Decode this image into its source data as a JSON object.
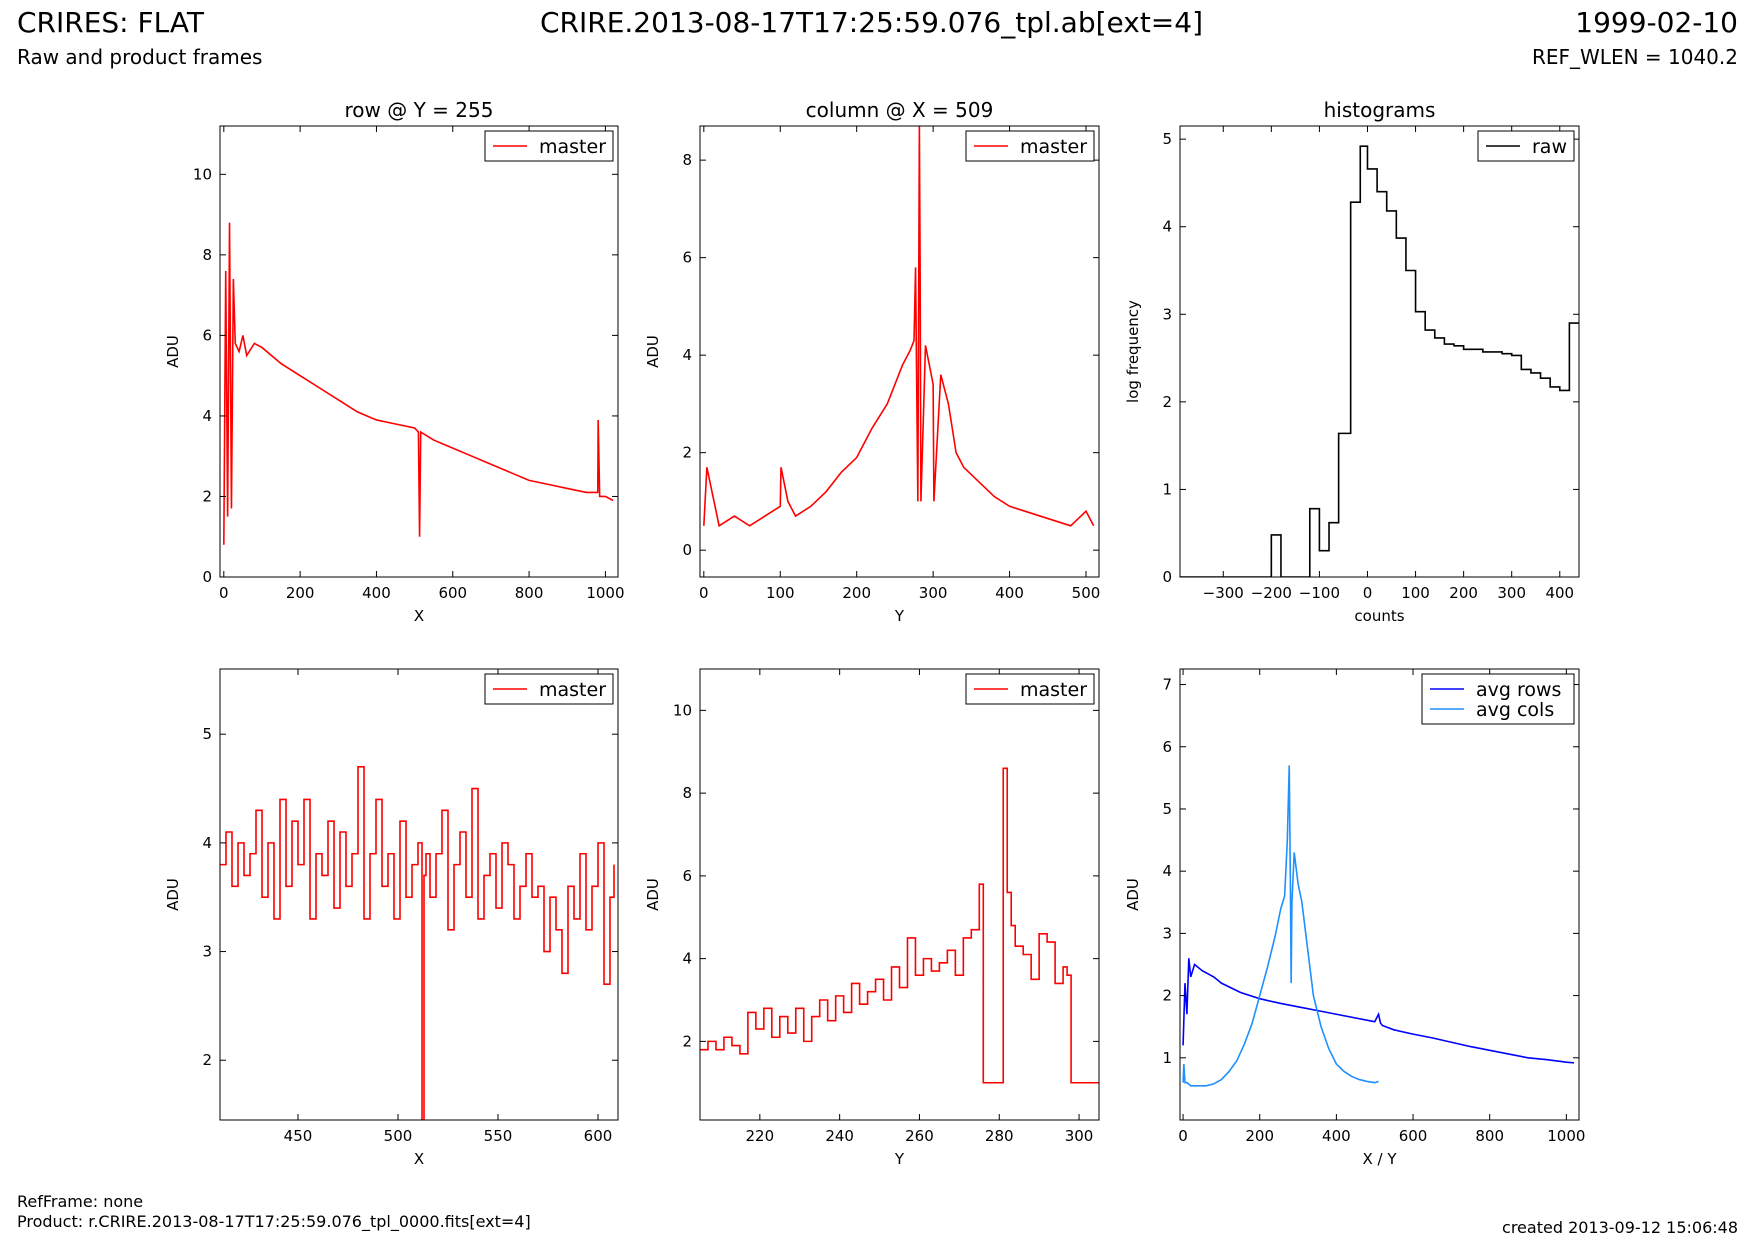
{
  "header": {
    "title_left": "CRIRES: FLAT",
    "subtitle_left": "Raw and product frames",
    "title_center": "CRIRE.2013-08-17T17:25:59.076_tpl.ab[ext=4]",
    "title_right": "1999-02-10",
    "subtitle_right": "REF_WLEN = 1040.2"
  },
  "footer": {
    "ref_frame": "RefFrame: none",
    "product": "Product: r.CRIRE.2013-08-17T17:25:59.076_tpl_0000.fits[ext=4]",
    "created": "created 2013-09-12 15:06:48"
  },
  "colors": {
    "master": "#ff0000",
    "raw": "#000000",
    "avg_rows": "#0000ff",
    "avg_cols": "#1e90ff"
  },
  "chart_data": [
    {
      "id": "p1",
      "type": "line",
      "title": "row @ Y = 255",
      "xlabel": "X",
      "ylabel": "ADU",
      "xlim": [
        -10,
        1033
      ],
      "ylim": [
        0,
        11.2
      ],
      "xticks": [
        0,
        200,
        400,
        600,
        800,
        1000
      ],
      "yticks": [
        0,
        2,
        4,
        6,
        8,
        10
      ],
      "legend": "top-right",
      "series": [
        {
          "name": "master",
          "color": "#ff0000",
          "x": [
            0,
            5,
            10,
            15,
            20,
            25,
            30,
            40,
            50,
            60,
            80,
            100,
            150,
            200,
            250,
            300,
            350,
            400,
            450,
            500,
            510,
            513,
            516,
            550,
            600,
            650,
            700,
            750,
            800,
            850,
            900,
            950,
            980,
            981,
            985,
            1000,
            1020
          ],
          "y": [
            0.8,
            7.6,
            1.5,
            8.8,
            1.7,
            7.4,
            5.8,
            5.6,
            6.0,
            5.5,
            5.8,
            5.7,
            5.3,
            5.0,
            4.7,
            4.4,
            4.1,
            3.9,
            3.8,
            3.7,
            3.6,
            1.0,
            3.6,
            3.4,
            3.2,
            3.0,
            2.8,
            2.6,
            2.4,
            2.3,
            2.2,
            2.1,
            2.1,
            3.9,
            2.0,
            2.0,
            1.9
          ]
        }
      ]
    },
    {
      "id": "p2",
      "type": "line",
      "title": "column @ X = 509",
      "xlabel": "Y",
      "ylabel": "ADU",
      "xlim": [
        -5,
        517
      ],
      "ylim": [
        -0.55,
        8.7
      ],
      "xticks": [
        0,
        100,
        200,
        300,
        400,
        500
      ],
      "yticks": [
        0,
        2,
        4,
        6,
        8
      ],
      "legend": "top-right",
      "series": [
        {
          "name": "master",
          "color": "#ff0000",
          "x": [
            0,
            4,
            20,
            40,
            60,
            80,
            100,
            101,
            110,
            120,
            140,
            160,
            180,
            200,
            220,
            240,
            260,
            270,
            275,
            277,
            280,
            282,
            283,
            284,
            290,
            300,
            301,
            310,
            320,
            330,
            340,
            360,
            380,
            400,
            420,
            440,
            460,
            480,
            500,
            510
          ],
          "y": [
            0.5,
            1.7,
            0.5,
            0.7,
            0.5,
            0.7,
            0.9,
            1.7,
            1.0,
            0.7,
            0.9,
            1.2,
            1.6,
            1.9,
            2.5,
            3.0,
            3.8,
            4.1,
            4.3,
            5.8,
            1.0,
            8.7,
            5.7,
            1.0,
            4.2,
            3.4,
            1.0,
            3.6,
            3.0,
            2.0,
            1.7,
            1.4,
            1.1,
            0.9,
            0.8,
            0.7,
            0.6,
            0.5,
            0.8,
            0.5
          ]
        }
      ]
    },
    {
      "id": "p3",
      "type": "line",
      "title": "histograms",
      "xlabel": "counts",
      "ylabel": "log frequency",
      "xlim": [
        -390,
        440
      ],
      "ylim": [
        0,
        5.15
      ],
      "xticks": [
        -300,
        -200,
        -100,
        0,
        100,
        200,
        300,
        400
      ],
      "yticks": [
        0,
        1,
        2,
        3,
        4,
        5
      ],
      "legend": "top-right",
      "series": [
        {
          "name": "raw",
          "color": "#000000",
          "step": true,
          "x": [
            -390,
            -200,
            -180,
            -120,
            -100,
            -80,
            -60,
            -35,
            -15,
            0,
            20,
            40,
            60,
            80,
            100,
            120,
            140,
            160,
            180,
            200,
            240,
            280,
            300,
            320,
            340,
            360,
            380,
            400,
            420,
            440
          ],
          "y": [
            0,
            0.48,
            0,
            0.78,
            0.3,
            0.62,
            1.64,
            4.28,
            4.92,
            4.66,
            4.4,
            4.18,
            3.87,
            3.5,
            3.03,
            2.82,
            2.73,
            2.66,
            2.64,
            2.6,
            2.57,
            2.55,
            2.53,
            2.37,
            2.33,
            2.27,
            2.17,
            2.13,
            2.9,
            2.9
          ]
        }
      ]
    },
    {
      "id": "p4",
      "type": "line",
      "title": "",
      "xlabel": "X",
      "ylabel": "ADU",
      "xlim": [
        411,
        610
      ],
      "ylim": [
        1.45,
        5.6
      ],
      "xticks": [
        450,
        500,
        550,
        600
      ],
      "yticks": [
        2,
        3,
        4,
        5
      ],
      "legend": "top-right",
      "series": [
        {
          "name": "master",
          "color": "#ff0000",
          "step": true,
          "x": [
            411,
            414,
            417,
            420,
            423,
            426,
            429,
            432,
            435,
            438,
            441,
            444,
            447,
            450,
            453,
            456,
            459,
            462,
            465,
            468,
            471,
            474,
            477,
            480,
            483,
            486,
            489,
            492,
            495,
            498,
            501,
            504,
            507,
            510,
            512,
            513,
            514,
            516,
            519,
            522,
            525,
            528,
            531,
            534,
            537,
            540,
            543,
            546,
            549,
            552,
            555,
            558,
            561,
            564,
            567,
            570,
            573,
            576,
            579,
            582,
            585,
            588,
            591,
            594,
            597,
            600,
            603,
            606,
            608
          ],
          "y": [
            3.8,
            4.1,
            3.6,
            4.0,
            3.7,
            3.9,
            4.3,
            3.5,
            4.0,
            3.3,
            4.4,
            3.6,
            4.2,
            3.8,
            4.4,
            3.3,
            3.9,
            3.7,
            4.2,
            3.4,
            4.1,
            3.6,
            3.9,
            4.7,
            3.3,
            3.9,
            4.4,
            3.6,
            3.9,
            3.3,
            4.2,
            3.5,
            3.8,
            4.0,
            1.4,
            3.7,
            3.9,
            3.5,
            3.9,
            4.3,
            3.2,
            3.8,
            4.1,
            3.5,
            4.5,
            3.3,
            3.7,
            3.9,
            3.4,
            4.0,
            3.8,
            3.3,
            3.6,
            3.9,
            3.5,
            3.6,
            3.0,
            3.5,
            3.2,
            2.8,
            3.6,
            3.3,
            3.9,
            3.2,
            3.6,
            4.0,
            2.7,
            3.5,
            3.8
          ]
        }
      ]
    },
    {
      "id": "p5",
      "type": "line",
      "title": "",
      "xlabel": "Y",
      "ylabel": "ADU",
      "xlim": [
        205,
        305
      ],
      "ylim": [
        0.1,
        11
      ],
      "xticks": [
        220,
        240,
        260,
        280,
        300
      ],
      "yticks": [
        2,
        4,
        6,
        8,
        10
      ],
      "legend": "top-right",
      "series": [
        {
          "name": "master",
          "color": "#ff0000",
          "step": true,
          "x": [
            205,
            207,
            209,
            211,
            213,
            215,
            217,
            219,
            221,
            223,
            225,
            227,
            229,
            231,
            233,
            235,
            237,
            239,
            241,
            243,
            245,
            247,
            249,
            251,
            253,
            255,
            257,
            259,
            261,
            263,
            265,
            267,
            269,
            271,
            273,
            275,
            276,
            278,
            281,
            282,
            283,
            284,
            286,
            288,
            290,
            292,
            294,
            296,
            297,
            298,
            305
          ],
          "y": [
            1.8,
            2.0,
            1.8,
            2.1,
            1.9,
            1.7,
            2.7,
            2.3,
            2.8,
            2.1,
            2.6,
            2.2,
            2.8,
            2.0,
            2.6,
            3.0,
            2.5,
            3.1,
            2.7,
            3.4,
            2.9,
            3.2,
            3.5,
            3.0,
            3.8,
            3.3,
            4.5,
            3.6,
            4.0,
            3.7,
            3.9,
            4.2,
            3.6,
            4.5,
            4.7,
            5.8,
            1.0,
            1.0,
            8.6,
            5.6,
            4.8,
            4.3,
            4.1,
            3.5,
            4.6,
            4.4,
            3.4,
            3.8,
            3.6,
            1.0,
            1.0
          ]
        }
      ]
    },
    {
      "id": "p6",
      "type": "line",
      "title": "",
      "xlabel": "X / Y",
      "ylabel": "ADU",
      "xlim": [
        -8,
        1033
      ],
      "ylim": [
        0,
        7.25
      ],
      "xticks": [
        0,
        200,
        400,
        600,
        800,
        1000
      ],
      "yticks": [
        1,
        2,
        3,
        4,
        5,
        6,
        7
      ],
      "legend": "top-right",
      "series": [
        {
          "name": "avg rows",
          "color": "#0000ff",
          "x": [
            0,
            5,
            10,
            15,
            20,
            30,
            50,
            80,
            100,
            150,
            200,
            250,
            300,
            350,
            400,
            450,
            500,
            510,
            515,
            520,
            550,
            600,
            650,
            700,
            750,
            800,
            850,
            900,
            950,
            1000,
            1020
          ],
          "y": [
            1.2,
            2.2,
            1.7,
            2.6,
            2.3,
            2.5,
            2.4,
            2.3,
            2.2,
            2.05,
            1.95,
            1.88,
            1.82,
            1.76,
            1.7,
            1.64,
            1.58,
            1.7,
            1.56,
            1.52,
            1.45,
            1.38,
            1.32,
            1.25,
            1.18,
            1.12,
            1.06,
            1.0,
            0.97,
            0.93,
            0.92
          ]
        },
        {
          "name": "avg cols",
          "color": "#1e90ff",
          "x": [
            0,
            2,
            5,
            10,
            20,
            40,
            60,
            80,
            100,
            120,
            140,
            160,
            180,
            200,
            220,
            240,
            255,
            265,
            272,
            277,
            280,
            282,
            284,
            290,
            300,
            310,
            320,
            340,
            360,
            380,
            400,
            420,
            440,
            460,
            480,
            500,
            510
          ],
          "y": [
            0.6,
            0.9,
            0.6,
            0.6,
            0.55,
            0.55,
            0.55,
            0.58,
            0.65,
            0.78,
            0.95,
            1.22,
            1.55,
            2.0,
            2.45,
            2.95,
            3.4,
            3.6,
            4.5,
            5.7,
            3.8,
            2.2,
            3.5,
            4.3,
            3.8,
            3.5,
            3.0,
            2.0,
            1.5,
            1.15,
            0.9,
            0.78,
            0.7,
            0.65,
            0.62,
            0.6,
            0.62
          ]
        }
      ]
    }
  ]
}
